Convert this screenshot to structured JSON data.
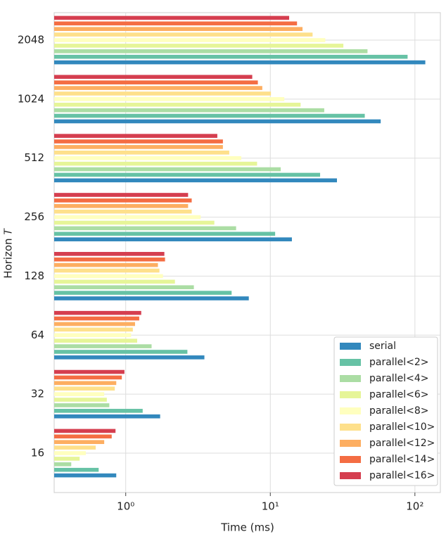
{
  "chart_data": {
    "type": "bar",
    "orientation": "horizontal",
    "xlabel": "Time (ms)",
    "ylabel": "Horizon 𝑇",
    "categories": [
      "16",
      "32",
      "64",
      "128",
      "256",
      "512",
      "1024",
      "2048"
    ],
    "xscale": "log",
    "xlim": [
      0.32,
      150
    ],
    "xticks": [
      {
        "value": 1,
        "label": "10⁰"
      },
      {
        "value": 10,
        "label": "10¹"
      },
      {
        "value": 100,
        "label": "10²"
      }
    ],
    "grid": true,
    "legend": "lower right",
    "series": [
      {
        "name": "serial",
        "color": "#3288bd",
        "values": [
          0.86,
          1.73,
          3.5,
          7.1,
          14.1,
          28.9,
          58,
          118
        ]
      },
      {
        "name": "parallel<2>",
        "color": "#66c2a5",
        "values": [
          0.65,
          1.31,
          2.67,
          5.4,
          10.8,
          22.1,
          45,
          89
        ]
      },
      {
        "name": "parallel<4>",
        "color": "#abdda4",
        "values": [
          0.42,
          0.77,
          1.51,
          2.96,
          5.8,
          11.8,
          23.6,
          47
        ]
      },
      {
        "name": "parallel<6>",
        "color": "#e6f598",
        "values": [
          0.48,
          0.74,
          1.2,
          2.19,
          4.1,
          8.1,
          16.2,
          32
        ]
      },
      {
        "name": "parallel<8>",
        "color": "#ffffbf",
        "values": [
          0.53,
          0.71,
          1.09,
          1.81,
          3.3,
          6.3,
          12.5,
          24
        ]
      },
      {
        "name": "parallel<10>",
        "color": "#fee08b",
        "values": [
          0.62,
          0.84,
          1.12,
          1.71,
          2.86,
          5.2,
          10.1,
          19.6
        ]
      },
      {
        "name": "parallel<12>",
        "color": "#fdae61",
        "values": [
          0.71,
          0.86,
          1.16,
          1.67,
          2.7,
          4.7,
          8.8,
          16.7
        ]
      },
      {
        "name": "parallel<14>",
        "color": "#f46d43",
        "values": [
          0.8,
          0.94,
          1.24,
          1.87,
          2.86,
          4.7,
          8.2,
          15.3
        ]
      },
      {
        "name": "parallel<16>",
        "color": "#d53e4f",
        "values": [
          0.85,
          0.98,
          1.28,
          1.85,
          2.7,
          4.3,
          7.5,
          13.5
        ]
      }
    ]
  }
}
